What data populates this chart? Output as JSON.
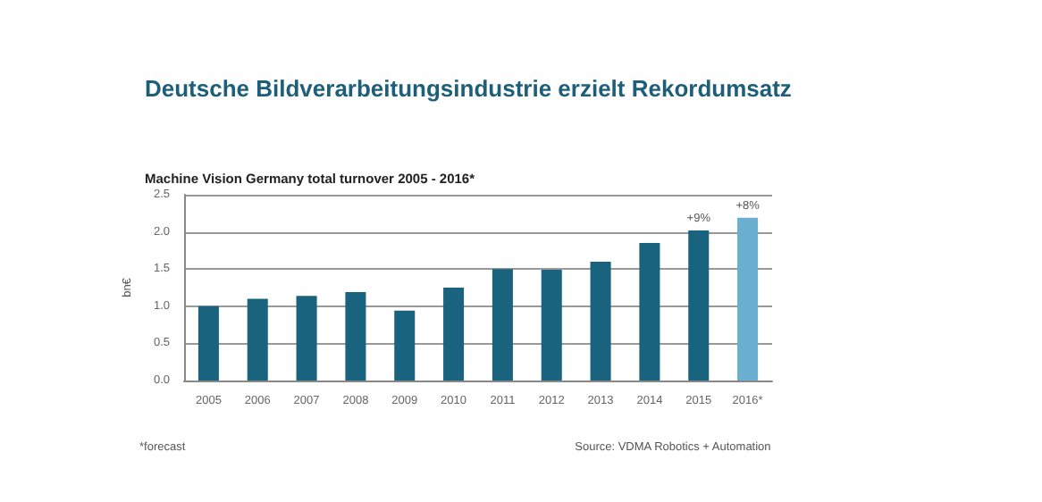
{
  "chart_data": {
    "type": "bar",
    "title": "Deutsche Bildverarbeitungsindustrie erzielt Rekordumsatz",
    "subtitle": "Machine Vision Germany total turnover 2005 - 2016*",
    "ylabel": "bn€",
    "categories": [
      "2005",
      "2006",
      "2007",
      "2008",
      "2009",
      "2010",
      "2011",
      "2012",
      "2013",
      "2014",
      "2015",
      "2016*"
    ],
    "values": [
      1.0,
      1.1,
      1.14,
      1.19,
      0.94,
      1.25,
      1.5,
      1.49,
      1.6,
      1.85,
      2.02,
      2.19
    ],
    "colors": [
      "#19637f",
      "#19637f",
      "#19637f",
      "#19637f",
      "#19637f",
      "#19637f",
      "#19637f",
      "#19637f",
      "#19637f",
      "#19637f",
      "#19637f",
      "#6aaed0"
    ],
    "ylim": [
      0,
      2.5
    ],
    "yticks": [
      {
        "value": 0,
        "label": "0.0"
      },
      {
        "value": 0.5,
        "label": "0.5"
      },
      {
        "value": 1,
        "label": "1.0"
      },
      {
        "value": 1.5,
        "label": "1.5"
      },
      {
        "value": 2,
        "label": "2.0"
      },
      {
        "value": 2.5,
        "label": "2.5"
      }
    ],
    "grid": "y",
    "annotations": [
      "*forecast",
      "Source: VDMA Robotics + Automation",
      {
        "text": "+9%",
        "x": "2015",
        "y": 2.02
      },
      {
        "text": "+8%",
        "x": "2016*",
        "y": 2.19
      }
    ]
  }
}
